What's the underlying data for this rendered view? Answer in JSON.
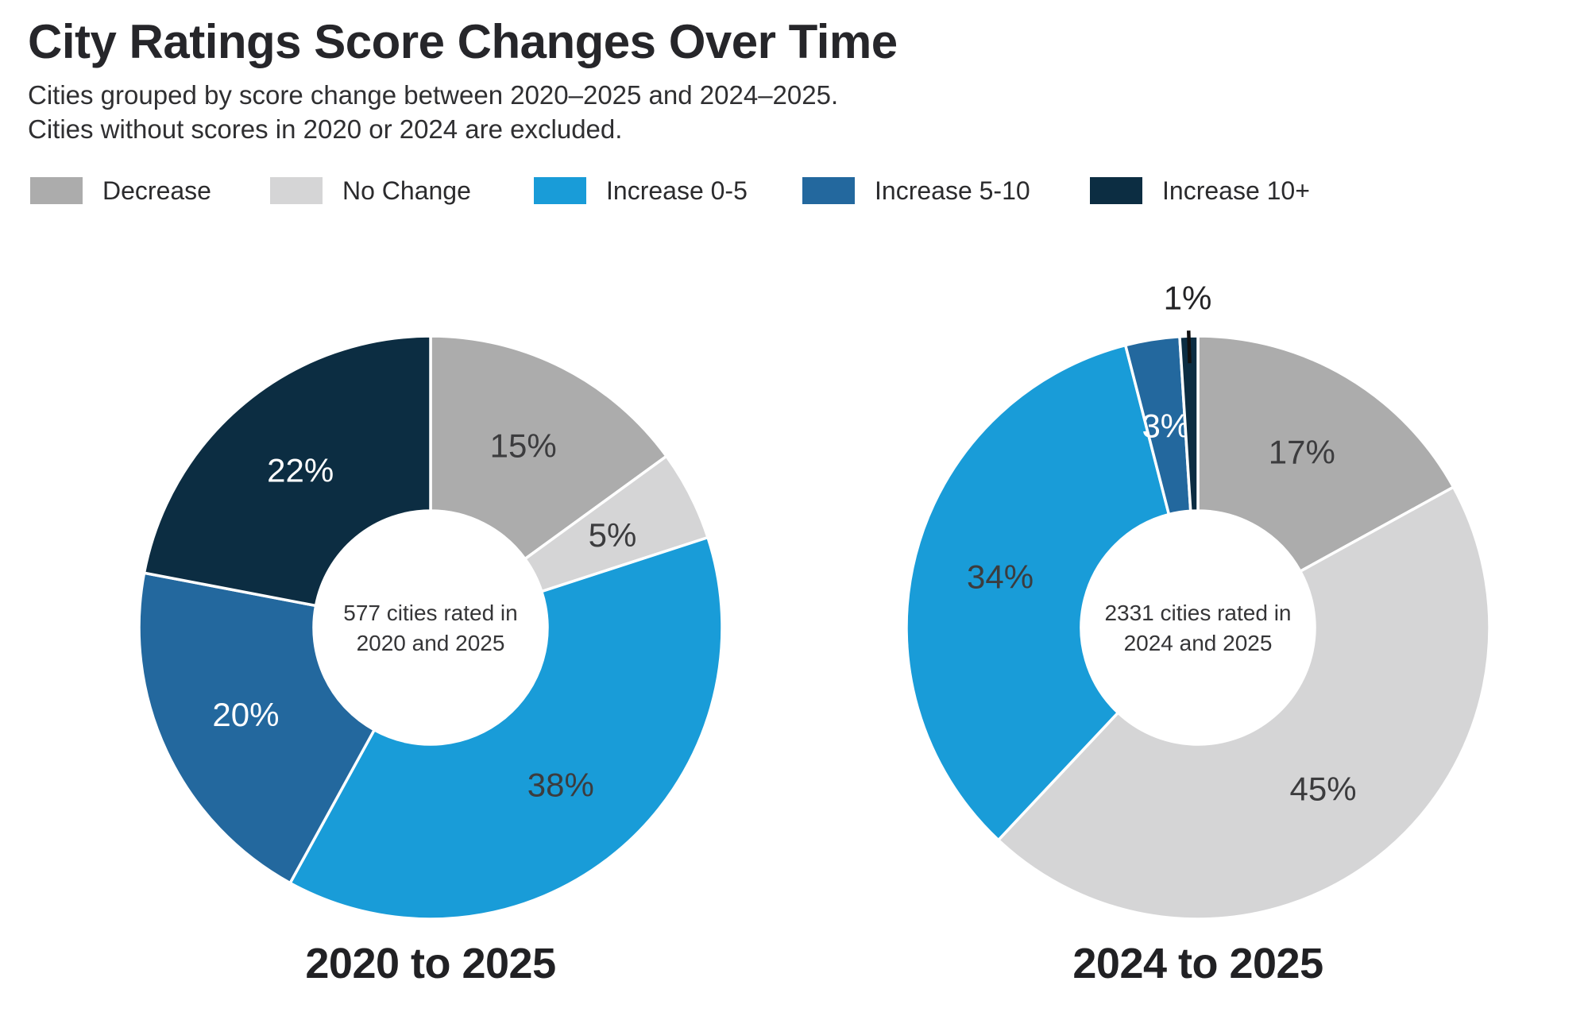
{
  "title": "City Ratings Score Changes Over Time",
  "subtitle_lines": [
    "Cities grouped by score change between 2020–2025 and 2024–2025.",
    "Cities without scores in 2020 or 2024 are excluded."
  ],
  "palette": {
    "decrease": "#ACACAC",
    "no_change": "#D5D5D6",
    "increase_0_5": "#199CD8",
    "increase_5_10": "#23689E",
    "increase_10_plus": "#0C2D42",
    "label_dark": "#3C3C3E",
    "label_white": "#FFFFFF",
    "callout_line": "#111111"
  },
  "legend": [
    {
      "label": "Decrease",
      "color": "#ACACAC"
    },
    {
      "label": "No Change",
      "color": "#D5D5D6"
    },
    {
      "label": "Increase 0-5",
      "color": "#199CD8"
    },
    {
      "label": "Increase 5-10",
      "color": "#23689E"
    },
    {
      "label": "Increase 10+",
      "color": "#0C2D42"
    }
  ],
  "chart_data": [
    {
      "type": "pie",
      "variant": "donut",
      "caption": "2020 to 2025",
      "center_label_lines": [
        "577 cities rated in",
        "2020 and 2025"
      ],
      "categories": [
        "Decrease",
        "No Change",
        "Increase 0-5",
        "Increase 5-10",
        "Increase 10+"
      ],
      "values_pct": [
        15,
        5,
        38,
        20,
        22
      ],
      "colors": [
        "#ACACAC",
        "#D5D5D6",
        "#199CD8",
        "#23689E",
        "#0C2D42"
      ],
      "slice_label_colors": [
        "dark",
        "dark",
        "dark",
        "white",
        "white"
      ],
      "label_outside": [
        false,
        false,
        false,
        false,
        false
      ],
      "start_angle_deg": 0,
      "direction": "clockwise",
      "legend_position": "top"
    },
    {
      "type": "pie",
      "variant": "donut",
      "caption": "2024 to 2025",
      "center_label_lines": [
        "2331 cities rated in",
        "2024 and 2025"
      ],
      "categories": [
        "Decrease",
        "No Change",
        "Increase 0-5",
        "Increase 5-10",
        "Increase 10+"
      ],
      "values_pct": [
        17,
        45,
        34,
        3,
        1
      ],
      "colors": [
        "#ACACAC",
        "#D5D5D6",
        "#199CD8",
        "#23689E",
        "#0C2D42"
      ],
      "slice_label_colors": [
        "dark",
        "dark",
        "dark",
        "white",
        "dark"
      ],
      "label_outside": [
        false,
        false,
        false,
        false,
        true
      ],
      "start_angle_deg": 0,
      "direction": "clockwise",
      "legend_position": "top"
    }
  ]
}
